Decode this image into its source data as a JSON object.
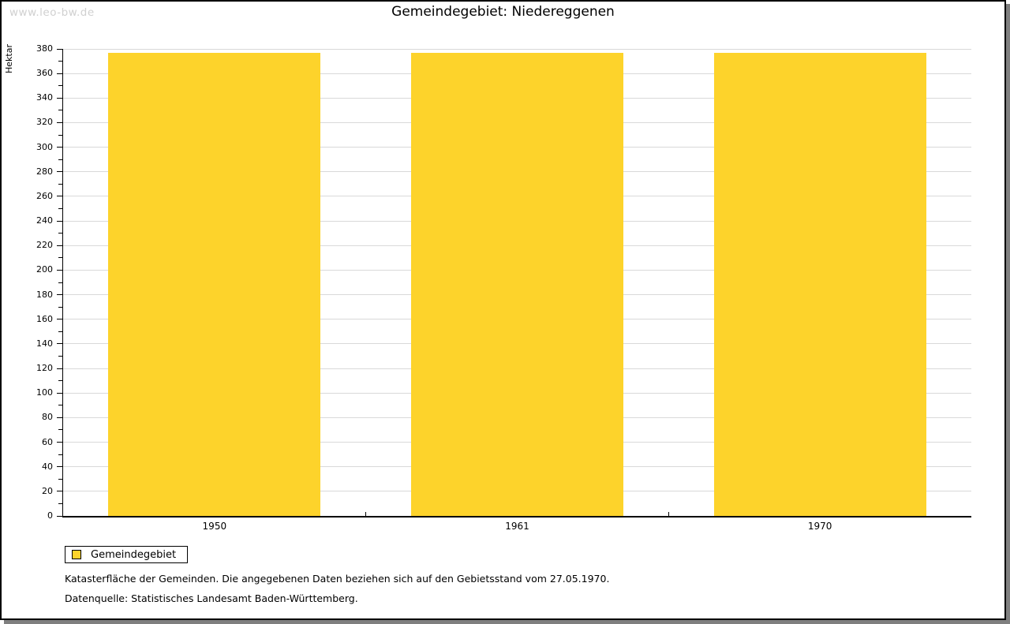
{
  "watermark": "www.leo-bw.de",
  "chart_data": {
    "type": "bar",
    "title": "Gemeindegebiet: Niedereggenen",
    "categories": [
      "1950",
      "1961",
      "1970"
    ],
    "series": [
      {
        "name": "Gemeindegebiet",
        "values": [
          377,
          377,
          377
        ],
        "color": "#FDD32B"
      }
    ],
    "xlabel": "",
    "ylabel": "Hektar",
    "ylim": [
      0,
      380
    ],
    "y_major_step": 20,
    "y_minor_step": 10,
    "grid": "horizontal-major-only",
    "legend_position": "bottom-left"
  },
  "legend": {
    "items": [
      {
        "label": "Gemeindegebiet",
        "color": "#FDD32B"
      }
    ]
  },
  "footer": {
    "line1": "Katasterfläche der Gemeinden. Die angegebenen Daten beziehen sich auf den Gebietsstand vom 27.05.1970.",
    "line2": "Datenquelle: Statistisches Landesamt Baden-Württemberg."
  },
  "colors": {
    "bar": "#FDD32B",
    "grid": "#d9d9d9",
    "axis": "#000000",
    "watermark": "#d0d0d0",
    "shadow": "#7f7f7f",
    "background": "#ffffff"
  }
}
